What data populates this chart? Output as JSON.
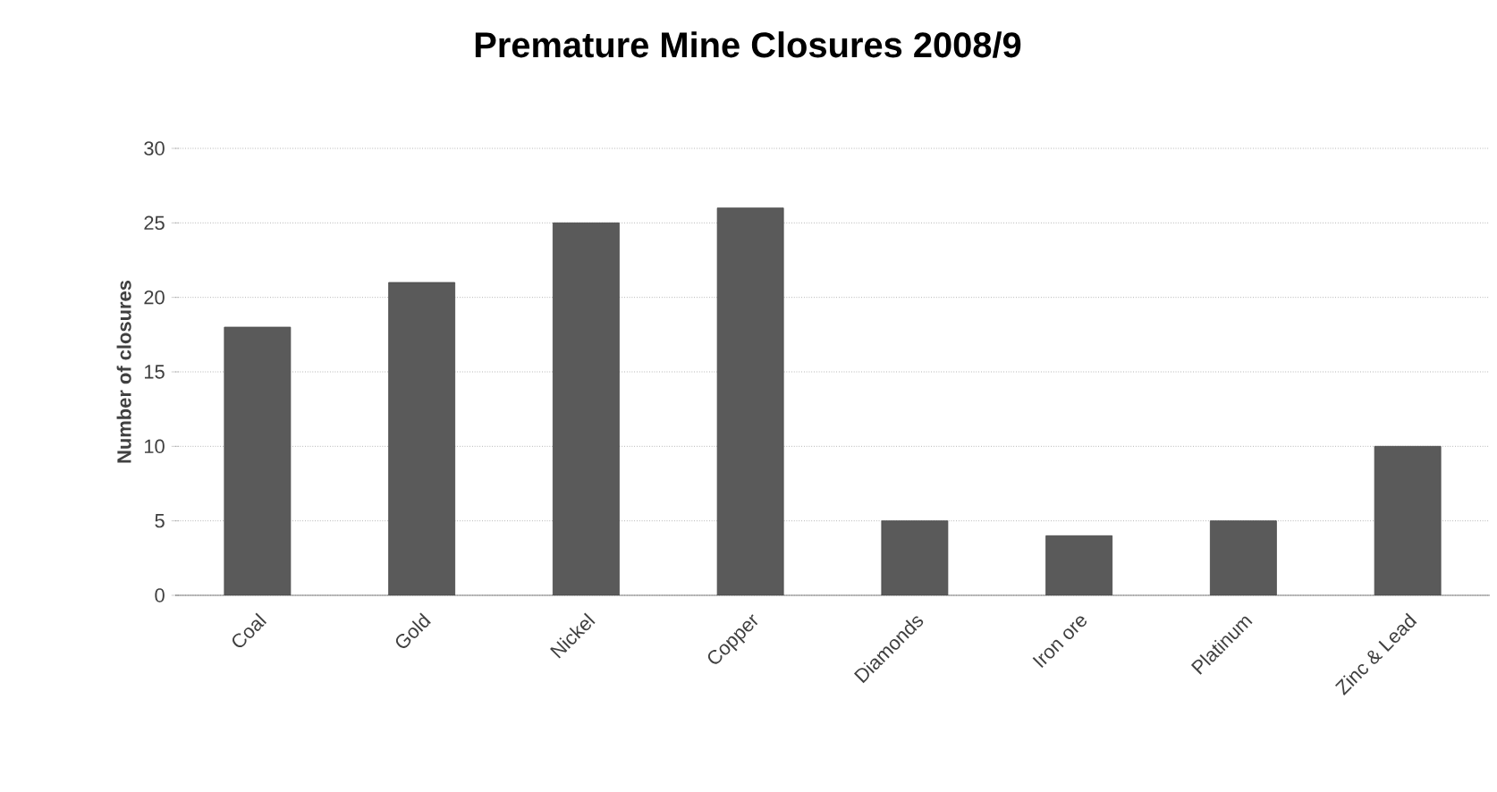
{
  "chart_data": {
    "type": "bar",
    "title": "Premature Mine Closures 2008/9",
    "ylabel": "Number of closures",
    "categories": [
      "Coal",
      "Gold",
      "Nickel",
      "Copper",
      "Diamonds",
      "Iron ore",
      "Platinum",
      "Zinc & Lead"
    ],
    "values": [
      18,
      21,
      25,
      26,
      5,
      4,
      5,
      10
    ],
    "color": "#5a5a5a",
    "ylim": [
      0,
      30
    ],
    "yticks": [
      0,
      5,
      10,
      15,
      20,
      25,
      30
    ],
    "grid": "y"
  }
}
